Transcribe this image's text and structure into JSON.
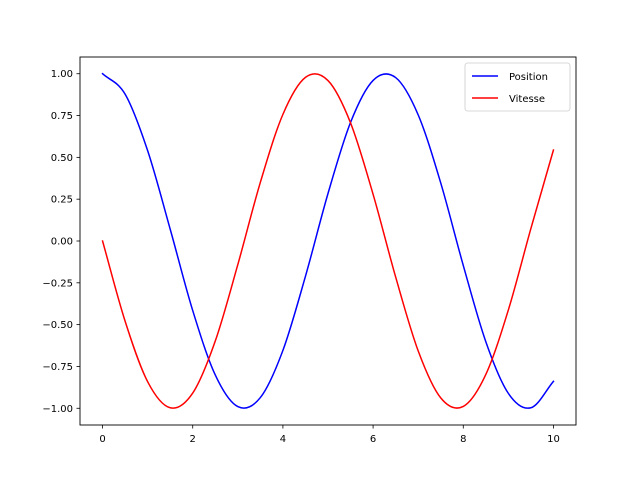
{
  "chart_data": {
    "type": "line",
    "title": "",
    "xlabel": "",
    "ylabel": "",
    "xlim": [
      -0.5,
      10.5
    ],
    "ylim": [
      -1.1,
      1.1
    ],
    "x_ticks": [
      0,
      2,
      4,
      6,
      8,
      10
    ],
    "y_ticks": [
      -1.0,
      -0.75,
      -0.5,
      -0.25,
      0.0,
      0.25,
      0.5,
      0.75,
      1.0
    ],
    "x_tick_labels": [
      "0",
      "2",
      "4",
      "6",
      "8",
      "10"
    ],
    "y_tick_labels": [
      "−1.00",
      "−0.75",
      "−0.50",
      "−0.25",
      "0.00",
      "0.25",
      "0.50",
      "0.75",
      "1.00"
    ],
    "grid": false,
    "legend_position": "top-right",
    "x": [
      0,
      0.5,
      1,
      1.5,
      2,
      2.5,
      3,
      3.5,
      4,
      4.5,
      5,
      5.5,
      6,
      6.5,
      7,
      7.5,
      8,
      8.5,
      9,
      9.5,
      10
    ],
    "series": [
      {
        "name": "Position",
        "color": "#0000ff",
        "values": [
          1.0,
          0.878,
          0.54,
          0.071,
          -0.416,
          -0.801,
          -0.99,
          -0.936,
          -0.654,
          -0.211,
          0.284,
          0.709,
          0.96,
          0.977,
          0.754,
          0.347,
          -0.146,
          -0.602,
          -0.911,
          -0.997,
          -0.839
        ]
      },
      {
        "name": "Vitesse",
        "color": "#ff0000",
        "values": [
          0.0,
          -0.479,
          -0.841,
          -0.997,
          -0.909,
          -0.598,
          -0.141,
          0.351,
          0.757,
          0.978,
          0.959,
          0.706,
          0.279,
          -0.215,
          -0.657,
          -0.938,
          -0.989,
          -0.798,
          -0.412,
          0.075,
          0.544
        ]
      }
    ]
  }
}
